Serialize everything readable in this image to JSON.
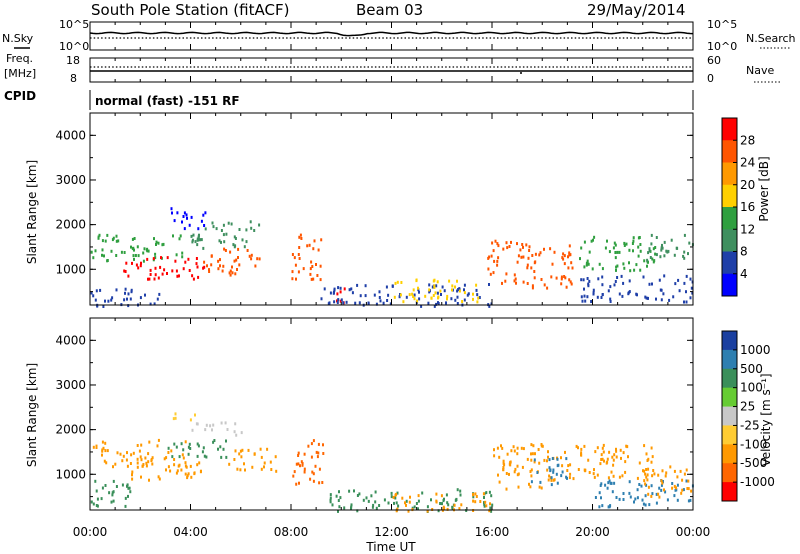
{
  "header": {
    "station": "South Pole Station (fitACF)",
    "beam": "Beam 03",
    "date": "29/May/2014"
  },
  "noise_panel": {
    "left_label": "N.Sky",
    "left_ticks": [
      "10^5",
      "10^0"
    ],
    "right_label": "N.Search",
    "right_ticks": [
      "10^5",
      "10^0"
    ]
  },
  "freq_panel": {
    "left_label_1": "Freq.",
    "left_label_2": "[MHz]",
    "left_ticks": [
      "18",
      "8"
    ],
    "right_label": "Nave",
    "right_ticks": [
      "60",
      "0"
    ]
  },
  "cpid": {
    "label": "CPID",
    "value": "normal (fast) -151 RF"
  },
  "colors": {
    "power_scale": [
      "#0000ff",
      "#1f3fa8",
      "#3f8f5f",
      "#2f9f3f",
      "#ffd000",
      "#ff9900",
      "#ff5500",
      "#ff0000"
    ],
    "velocity_scale": [
      "#1a3fa0",
      "#2e7fb0",
      "#3a8f5a",
      "#66cc33",
      "#c8c8c8",
      "#ffcc33",
      "#ff9900",
      "#ff6600",
      "#ff0000"
    ]
  },
  "chart_data": [
    {
      "type": "heatmap",
      "name": "power",
      "xlabel": "",
      "ylabel": "Slant Range [km]",
      "ylim": [
        200,
        4500
      ],
      "yticks": [
        "4000",
        "3000",
        "2000",
        "1000"
      ],
      "xticks": [
        "00:00",
        "04:00",
        "08:00",
        "12:00",
        "16:00",
        "20:00",
        "00:00"
      ],
      "colorbar": {
        "label": "Power [dB]",
        "ticks": [
          "28",
          "24",
          "20",
          "16",
          "12",
          "8",
          "4"
        ],
        "range": [
          0,
          32
        ]
      }
    },
    {
      "type": "heatmap",
      "name": "velocity",
      "xlabel": "Time UT",
      "ylabel": "Slant Range [km]",
      "ylim": [
        200,
        4500
      ],
      "yticks": [
        "4000",
        "3000",
        "2000",
        "1000"
      ],
      "xticks": [
        "00:00",
        "04:00",
        "08:00",
        "12:00",
        "16:00",
        "20:00",
        "00:00"
      ],
      "colorbar": {
        "label": "Velocity [m s⁻¹]",
        "ticks": [
          "1000",
          "500",
          "100",
          "25",
          "-25",
          "-100",
          "-500",
          "-1000"
        ]
      }
    }
  ]
}
